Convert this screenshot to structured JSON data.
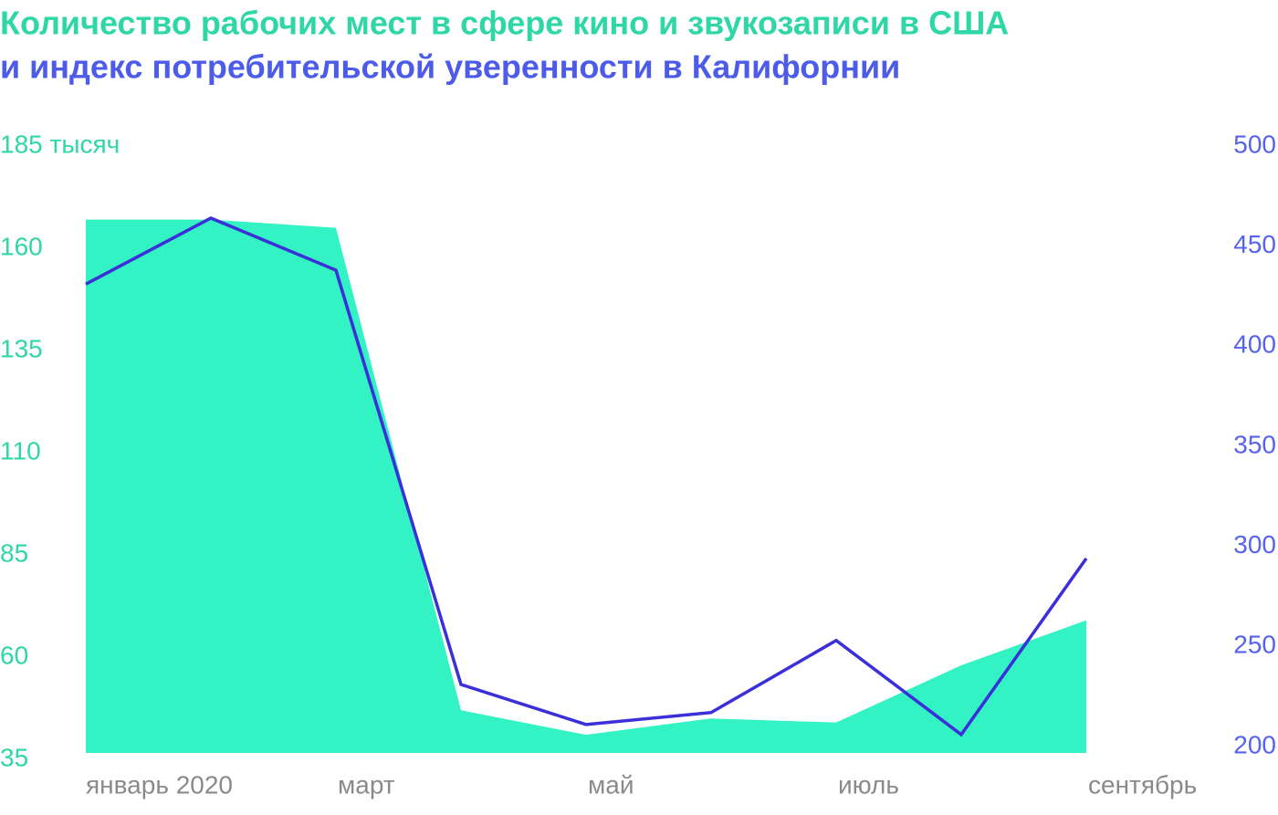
{
  "chart_data": {
    "type": "combo",
    "title": [
      "Количество рабочих мест в сфере кино и звукозаписи в США",
      "и индекс потребительской уверенности в Калифорнии"
    ],
    "categories": [
      "январь 2020",
      null,
      "март",
      null,
      "май",
      null,
      "июль",
      null,
      "сентябрь"
    ],
    "series": [
      {
        "type": "area",
        "color": "#33f2c4",
        "axis": "y",
        "values": [
          167,
          167,
          165,
          47,
          41,
          45,
          44,
          58,
          69
        ]
      },
      {
        "type": "line",
        "color": "#3a2fd8",
        "axis": "y2",
        "values": [
          431,
          464,
          438,
          231,
          211,
          217,
          253,
          206,
          294
        ]
      }
    ],
    "ylim": [
      35,
      185
    ],
    "yticks": [
      35,
      60,
      85,
      110,
      135,
      160,
      {
        "value": 185,
        "label": "185 тысяч"
      }
    ],
    "y2lim": [
      200,
      500
    ],
    "y2ticks": [
      200,
      250,
      300,
      350,
      400,
      450,
      500
    ]
  }
}
